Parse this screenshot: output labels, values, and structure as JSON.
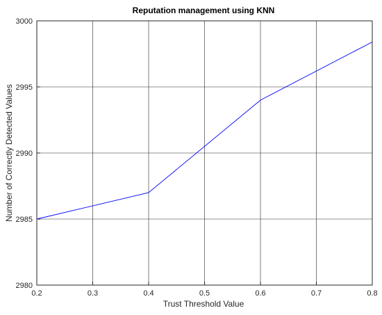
{
  "chart_data": {
    "type": "line",
    "title": "Reputation management using KNN",
    "xlabel": "Trust Threshold Value",
    "ylabel": "Number of Correctly Detected Values",
    "xlim": [
      0.2,
      0.8
    ],
    "ylim": [
      2980,
      3000
    ],
    "xticks": [
      "0.2",
      "0.3",
      "0.4",
      "0.5",
      "0.6",
      "0.7",
      "0.8"
    ],
    "yticks": [
      "2980",
      "2985",
      "2990",
      "2995",
      "3000"
    ],
    "grid": true,
    "series": [
      {
        "color": "#0000ff",
        "x": [
          0.2,
          0.4,
          0.6,
          0.8
        ],
        "y": [
          2985,
          2987,
          2994,
          2998.4
        ]
      }
    ]
  }
}
